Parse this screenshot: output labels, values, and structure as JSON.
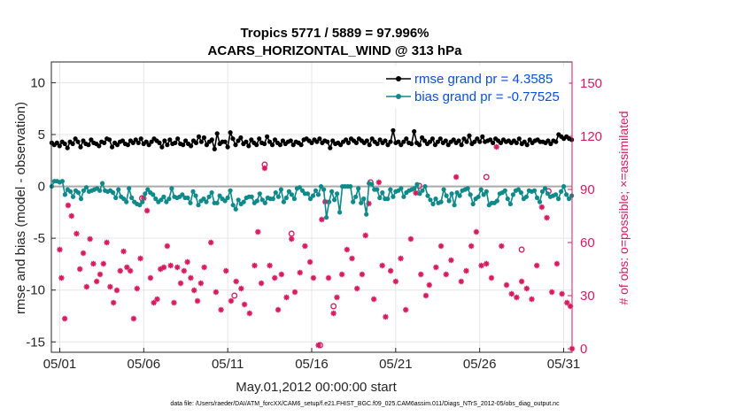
{
  "colors": {
    "rmse": "#000000",
    "bias": "#0f8a8a",
    "obs": "#d81b60",
    "legend_text": "#0b4fe0",
    "zero_line": "#aaaaaa"
  },
  "chart_data": {
    "type": "line",
    "title_line1": "Tropics 5771 / 5889 = 97.996%",
    "title_line2": "ACARS_HORIZONTAL_WIND @ 313 hPa",
    "xlabel": "May.01,2012 00:00:00 start",
    "ylabel_left": "rmse and bias (model - observation)",
    "ylabel_right": "# of obs: o=possible; ×=assimilated",
    "footer": "data file: /Users/raeder/DAI/ATM_forcXX/CAM6_setup/f.e21.FHIST_BGC.f09_025.CAM6assim.011/Diags_NTrS_2012-05/obs_diag_output.nc",
    "xlim": [
      0.5,
      31.5
    ],
    "ylim_left": [
      -16,
      12
    ],
    "ylim_right": [
      -2,
      162
    ],
    "x_tick_labels": [
      "05/01",
      "05/06",
      "05/11",
      "05/16",
      "05/21",
      "05/26",
      "05/31"
    ],
    "x_tick_values": [
      1,
      6,
      11,
      16,
      21,
      26,
      31
    ],
    "y_ticks_left": [
      10,
      5,
      0,
      -5,
      -10,
      -15
    ],
    "y_ticks_right": [
      150,
      120,
      90,
      60,
      30,
      0
    ],
    "legend": [
      {
        "name": "rmse grand pr = 4.3585"
      },
      {
        "name": "bias grand pr = -0.77525"
      }
    ],
    "series": [
      {
        "name": "rmse",
        "values": [
          4.2,
          4.0,
          4.2,
          3.9,
          4.3,
          4.1,
          3.7,
          4.3,
          4.1,
          4.6,
          4.3,
          3.8,
          4.4,
          4.1,
          4.0,
          4.5,
          4.2,
          4.1,
          3.9,
          4.3,
          4.2,
          4.6,
          4.5,
          3.8,
          4.2,
          4.0,
          4.3,
          4.4,
          4.1,
          4.0,
          4.4,
          4.2,
          4.5,
          4.2,
          4.6,
          4.1,
          4.3,
          4.0,
          4.3,
          4.6,
          4.4,
          4.2,
          3.8,
          4.4,
          4.0,
          4.5,
          4.1,
          4.2,
          4.6,
          4.1,
          4.0,
          4.4,
          4.1,
          3.9,
          4.4,
          4.2,
          4.8,
          4.3,
          4.7,
          4.0,
          4.3,
          4.5,
          3.6,
          5.1,
          4.1,
          4.3,
          4.3,
          3.8,
          5.2,
          4.6,
          4.0,
          4.4,
          4.7,
          4.1,
          4.3,
          3.9,
          4.5,
          4.2,
          4.0,
          4.6,
          4.2,
          4.1,
          4.8,
          4.3,
          4.0,
          4.5,
          4.2,
          4.0,
          4.4,
          4.1,
          4.3,
          4.4,
          4.0,
          4.3,
          4.2,
          4.0,
          4.5,
          4.6,
          4.4,
          4.2,
          4.5,
          4.3,
          4.6,
          4.2,
          4.4,
          4.3,
          3.7,
          4.4,
          4.1,
          4.2,
          4.0,
          4.3,
          4.5,
          4.2,
          4.6,
          4.4,
          4.2,
          4.6,
          4.4,
          4.2,
          4.4,
          4.0,
          4.6,
          4.3,
          4.1,
          4.5,
          4.2,
          4.4,
          4.0,
          4.3,
          5.4,
          4.2,
          4.3,
          4.0,
          4.3,
          4.6,
          4.2,
          4.1,
          5.3,
          4.2,
          4.0,
          4.7,
          4.4,
          4.1,
          4.3,
          4.6,
          4.0,
          4.3,
          4.6,
          4.2,
          4.4,
          4.0,
          4.3,
          4.5,
          4.2,
          4.4,
          4.0,
          4.6,
          4.3,
          4.9,
          4.1,
          4.3,
          4.6,
          4.3,
          4.8,
          4.3,
          4.4,
          4.5,
          4.2,
          4.6,
          4.4,
          4.2,
          4.5,
          4.3,
          4.4,
          4.2,
          4.4,
          4.2,
          4.6,
          4.1,
          4.3,
          4.0,
          4.5,
          4.2,
          4.4,
          4.5,
          4.3,
          4.3,
          4.2,
          4.4,
          4.1,
          4.4,
          4.3,
          5.0,
          4.8,
          4.6,
          4.8,
          4.6,
          4.5
        ]
      },
      {
        "name": "bias",
        "values": [
          0.0,
          0.5,
          0.5,
          0.4,
          0.5,
          -0.8,
          -0.3,
          -0.5,
          -1.0,
          -0.4,
          -0.6,
          -1.2,
          -0.4,
          -0.1,
          -0.5,
          -0.4,
          -0.3,
          -0.2,
          -0.4,
          0.3,
          -0.4,
          -0.5,
          -0.4,
          -0.6,
          -1.1,
          -0.3,
          -1.0,
          -1.2,
          -1.5,
          -0.2,
          -1.1,
          -1.5,
          -1.7,
          -1.8,
          -1.5,
          -0.7,
          -0.3,
          -0.6,
          -0.8,
          -1.2,
          -1.5,
          -1.3,
          -1.0,
          -1.5,
          -1.2,
          -0.2,
          -1.0,
          -1.1,
          -1.0,
          -0.8,
          -1.1,
          -1.1,
          -1.6,
          -0.5,
          -0.9,
          -1.8,
          -1.4,
          -1.2,
          -1.5,
          -1.0,
          -0.6,
          -1.6,
          -1.6,
          -0.9,
          -1.2,
          -1.4,
          -1.1,
          -0.4,
          -1.8,
          -2.2,
          -1.3,
          -1.7,
          -1.5,
          -1.1,
          -1.0,
          -1.0,
          -1.6,
          -1.4,
          -0.7,
          -1.3,
          -1.6,
          -1.1,
          -1.2,
          -1.2,
          -0.6,
          -1.0,
          -0.3,
          -1.5,
          -1.1,
          -0.5,
          -0.8,
          -1.2,
          -0.2,
          -0.1,
          -0.4,
          -0.7,
          -0.7,
          -1.2,
          -0.9,
          -0.4,
          -0.8,
          0.0,
          -0.3,
          -3.0,
          -1.5,
          -0.5,
          -1.3,
          -0.7,
          -2.5,
          0.0,
          0.0,
          0.0,
          0.0,
          -1.5,
          -1.0,
          -0.2,
          -1.6,
          -1.2,
          -2.7,
          0.3,
          0.2,
          -0.3,
          -0.3,
          -1.1,
          -0.6,
          -1.2,
          -1.2,
          -0.3,
          -1.0,
          -0.5,
          -0.4,
          -0.2,
          -1.0,
          -0.6,
          -0.4,
          -0.3,
          -0.2,
          0.2,
          -0.7,
          -0.4,
          0.0,
          -0.9,
          -1.3,
          -1.7,
          -1.2,
          -1.6,
          -1.5,
          -0.3,
          -0.9,
          -1.4,
          -0.7,
          -1.8,
          -0.6,
          -0.9,
          -0.4,
          -0.3,
          -0.2,
          -0.8,
          -1.7,
          -1.2,
          -1.0,
          -0.3,
          -0.8,
          -0.5,
          -1.8,
          -1.6,
          -1.6,
          -1.4,
          -0.7,
          -0.6,
          -0.4,
          -1.2,
          -1.7,
          -0.8,
          -0.4,
          -0.3,
          -0.6,
          -1.2,
          -1.0,
          -0.4,
          -0.5,
          -0.4,
          -1.1,
          -1.5,
          -0.5,
          -0.2,
          -0.7,
          -1.0,
          -0.9,
          -0.8,
          -1.2,
          -0.5,
          0.0,
          -0.8,
          -1.2,
          -0.9
        ]
      }
    ],
    "obs_assimilated": [
      [
        1.0,
        56
      ],
      [
        1.1,
        40
      ],
      [
        1.3,
        17
      ],
      [
        1.5,
        81
      ],
      [
        1.7,
        75
      ],
      [
        2.0,
        65
      ],
      [
        2.2,
        45
      ],
      [
        2.4,
        54
      ],
      [
        2.6,
        35
      ],
      [
        2.8,
        62
      ],
      [
        3.0,
        48
      ],
      [
        3.2,
        38
      ],
      [
        3.4,
        42
      ],
      [
        3.6,
        48
      ],
      [
        3.8,
        60
      ],
      [
        4.0,
        35
      ],
      [
        4.2,
        26
      ],
      [
        4.4,
        33
      ],
      [
        4.6,
        44
      ],
      [
        4.8,
        55
      ],
      [
        5.0,
        46
      ],
      [
        5.2,
        44
      ],
      [
        5.4,
        17
      ],
      [
        5.6,
        34
      ],
      [
        5.8,
        51
      ],
      [
        6.0,
        85
      ],
      [
        6.2,
        78
      ],
      [
        6.4,
        40
      ],
      [
        6.6,
        26
      ],
      [
        6.8,
        28
      ],
      [
        7.0,
        45
      ],
      [
        7.2,
        46
      ],
      [
        7.4,
        58
      ],
      [
        7.6,
        47
      ],
      [
        7.8,
        26
      ],
      [
        8.0,
        46
      ],
      [
        8.2,
        37
      ],
      [
        8.4,
        44
      ],
      [
        8.6,
        49
      ],
      [
        8.8,
        40
      ],
      [
        9.0,
        33
      ],
      [
        9.2,
        27
      ],
      [
        9.4,
        37
      ],
      [
        9.6,
        46
      ],
      [
        10.0,
        60
      ],
      [
        10.3,
        32
      ],
      [
        10.6,
        22
      ],
      [
        10.9,
        44
      ],
      [
        11.2,
        27
      ],
      [
        11.5,
        38
      ],
      [
        11.8,
        34
      ],
      [
        12.0,
        25
      ],
      [
        12.3,
        20
      ],
      [
        12.6,
        47
      ],
      [
        12.8,
        66
      ],
      [
        13.0,
        37
      ],
      [
        13.2,
        102
      ],
      [
        13.5,
        47
      ],
      [
        13.8,
        40
      ],
      [
        14.0,
        22
      ],
      [
        14.2,
        42
      ],
      [
        14.5,
        29
      ],
      [
        14.8,
        62
      ],
      [
        15.0,
        32
      ],
      [
        15.3,
        43
      ],
      [
        15.6,
        58
      ],
      [
        15.9,
        49
      ],
      [
        16.1,
        40
      ],
      [
        16.4,
        2
      ],
      [
        16.6,
        73
      ],
      [
        16.8,
        83
      ],
      [
        17.0,
        40
      ],
      [
        17.3,
        20
      ],
      [
        17.5,
        29
      ],
      [
        17.8,
        42
      ],
      [
        18.1,
        56
      ],
      [
        18.4,
        51
      ],
      [
        18.7,
        34
      ],
      [
        19.0,
        42
      ],
      [
        19.2,
        64
      ],
      [
        19.4,
        82
      ],
      [
        19.7,
        28
      ],
      [
        20.0,
        94
      ],
      [
        20.2,
        47
      ],
      [
        20.4,
        18
      ],
      [
        20.7,
        44
      ],
      [
        21.0,
        38
      ],
      [
        21.3,
        51
      ],
      [
        21.6,
        22
      ],
      [
        21.9,
        62
      ],
      [
        22.2,
        88
      ],
      [
        22.5,
        42
      ],
      [
        22.8,
        30
      ],
      [
        23.0,
        36
      ],
      [
        23.4,
        46
      ],
      [
        23.7,
        58
      ],
      [
        24.0,
        42
      ],
      [
        24.3,
        50
      ],
      [
        24.6,
        97
      ],
      [
        24.9,
        38
      ],
      [
        25.2,
        44
      ],
      [
        25.5,
        58
      ],
      [
        25.8,
        66
      ],
      [
        26.1,
        47
      ],
      [
        26.4,
        48
      ],
      [
        26.7,
        40
      ],
      [
        27.0,
        114
      ],
      [
        27.3,
        58
      ],
      [
        27.6,
        36
      ],
      [
        27.9,
        31
      ],
      [
        28.2,
        29
      ],
      [
        28.5,
        38
      ],
      [
        28.8,
        34
      ],
      [
        29.1,
        28
      ],
      [
        29.4,
        47
      ],
      [
        29.7,
        80
      ],
      [
        30.0,
        74
      ],
      [
        30.3,
        32
      ],
      [
        30.6,
        48
      ],
      [
        30.9,
        31
      ],
      [
        31.2,
        26
      ],
      [
        31.4,
        24
      ],
      [
        31.5,
        0
      ]
    ],
    "obs_possible": [
      [
        5.9,
        85
      ],
      [
        13.2,
        104
      ],
      [
        14.8,
        65
      ],
      [
        16.5,
        2
      ],
      [
        19.5,
        94
      ],
      [
        22.4,
        92
      ],
      [
        26.4,
        97
      ],
      [
        28.5,
        56
      ],
      [
        30.1,
        89
      ],
      [
        17.3,
        24
      ],
      [
        11.4,
        30
      ]
    ]
  }
}
